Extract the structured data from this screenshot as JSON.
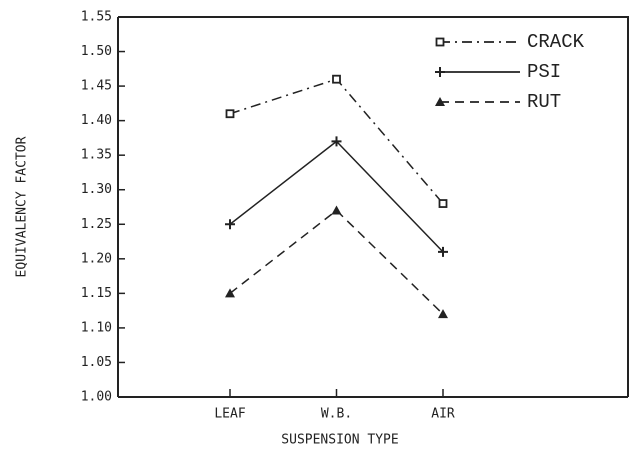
{
  "chart_data": {
    "type": "line",
    "xlabel": "SUSPENSION TYPE",
    "ylabel": "EQUIVALENCY FACTOR",
    "categories": [
      "LEAF",
      "W.B.",
      "AIR"
    ],
    "series": [
      {
        "name": "CRACK",
        "color": "#222222",
        "linestyle": "dashdot",
        "marker": "square",
        "values": [
          1.41,
          1.46,
          1.28
        ]
      },
      {
        "name": "PSI",
        "color": "#222222",
        "linestyle": "solid",
        "marker": "plus",
        "values": [
          1.25,
          1.37,
          1.21
        ]
      },
      {
        "name": "RUT",
        "color": "#222222",
        "linestyle": "dashed",
        "marker": "triangle",
        "values": [
          1.15,
          1.27,
          1.12
        ]
      }
    ],
    "ylim": [
      1.0,
      1.55
    ],
    "yticks": [
      {
        "value": 1.0,
        "label": "1.00"
      },
      1.05,
      {
        "value": 1.1,
        "label": "1.10"
      },
      1.15,
      {
        "value": 1.2,
        "label": "1.20"
      },
      1.25,
      {
        "value": 1.3,
        "label": "1.30"
      },
      1.35,
      {
        "value": 1.4,
        "label": "1.40"
      },
      1.45,
      {
        "value": 1.5,
        "label": "1.50"
      },
      1.55
    ],
    "legend": "upper right",
    "grid": false
  }
}
